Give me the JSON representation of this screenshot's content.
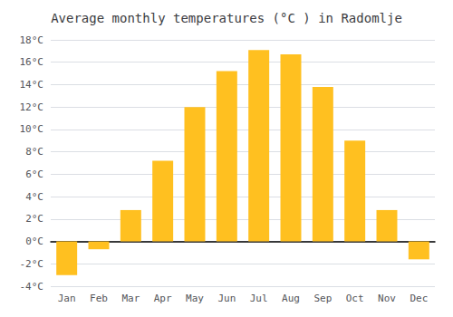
{
  "chart_data": {
    "type": "bar",
    "title": "Average monthly temperatures (°C ) in Radomlje",
    "categories": [
      "Jan",
      "Feb",
      "Mar",
      "Apr",
      "May",
      "Jun",
      "Jul",
      "Aug",
      "Sep",
      "Oct",
      "Nov",
      "Dec"
    ],
    "values": [
      -3.0,
      -0.7,
      2.8,
      7.2,
      12.0,
      15.2,
      17.1,
      16.7,
      13.8,
      9.0,
      2.8,
      -1.6
    ],
    "color": "#FFC020",
    "ylim": [
      -4,
      18
    ],
    "yticks": [
      {
        "value": -4,
        "label": "-4°C"
      },
      {
        "value": -2,
        "label": "-2°C"
      },
      {
        "value": 0,
        "label": "0°C"
      },
      {
        "value": 2,
        "label": "2°C"
      },
      {
        "value": 4,
        "label": "4°C"
      },
      {
        "value": 6,
        "label": "6°C"
      },
      {
        "value": 8,
        "label": "8°C"
      },
      {
        "value": 10,
        "label": "10°C"
      },
      {
        "value": 12,
        "label": "12°C"
      },
      {
        "value": 14,
        "label": "14°C"
      },
      {
        "value": 16,
        "label": "16°C"
      },
      {
        "value": 18,
        "label": "18°C"
      }
    ],
    "grid": true
  }
}
